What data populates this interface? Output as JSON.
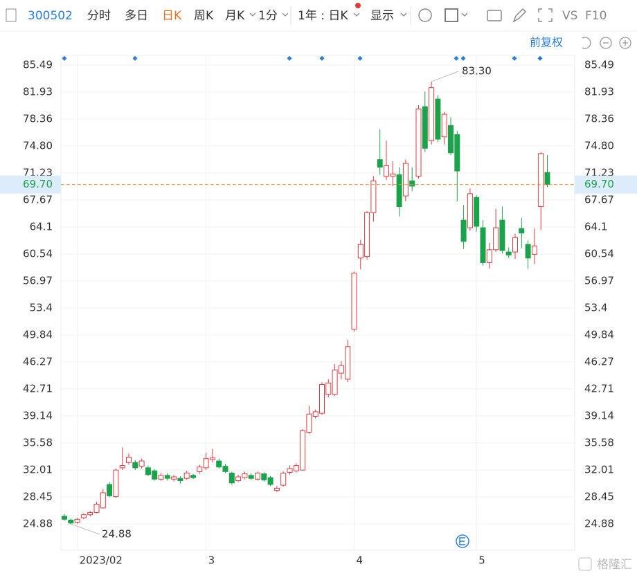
{
  "toolbar": {
    "code": "300502",
    "tabs": [
      "分时",
      "多日",
      "日K",
      "周K",
      "月K",
      "1分",
      "1年 : 日K",
      "显示"
    ],
    "vs": "VS",
    "f10": "F10",
    "adjust": "前复权",
    "watermark": "格隆汇"
  },
  "chart_data": {
    "type": "candlestick",
    "categories": [
      null,
      null,
      "2023/02",
      null,
      null,
      null,
      null,
      null,
      null,
      null,
      null,
      null,
      null,
      null,
      null,
      null,
      null,
      null,
      null,
      null,
      null,
      null,
      "3",
      null,
      null,
      null,
      null,
      null,
      null,
      null,
      null,
      null,
      null,
      null,
      null,
      null,
      null,
      null,
      null,
      null,
      null,
      null,
      null,
      null,
      null,
      "4",
      null,
      null,
      null,
      null,
      null,
      null,
      null,
      null,
      null,
      null,
      null,
      null,
      null,
      null,
      null,
      null,
      null,
      null,
      "5",
      null,
      null,
      null,
      null,
      null,
      null,
      null,
      null,
      null,
      null,
      null
    ],
    "open": [
      25.9,
      25.4,
      25.1,
      25.7,
      26.1,
      26.4,
      27.0,
      30.1,
      28.5,
      32.3,
      33.0,
      33.0,
      32.5,
      32.3,
      31.9,
      30.8,
      31.3,
      30.8,
      30.9,
      30.9,
      31.3,
      31.8,
      32.3,
      33.4,
      33.2,
      32.5,
      31.6,
      30.6,
      31.0,
      31.3,
      30.8,
      31.5,
      31.0,
      29.3,
      30.0,
      31.7,
      31.9,
      32.0,
      37.0,
      39.1,
      39.5,
      42.0,
      42.0,
      44.8,
      44.0,
      50.6,
      60.0,
      60.2,
      66.0,
      73.0,
      70.8,
      70.8,
      71.0,
      68.2,
      70.2,
      70.8,
      80.0,
      75.5,
      81.0,
      76.0,
      77.5,
      76.3,
      65.0,
      64.0,
      68.0,
      64.0,
      59.4,
      61.1,
      65.0,
      60.8,
      60.8,
      63.9,
      61.8,
      60.5,
      66.8,
      71.3
    ],
    "high": [
      26.2,
      25.6,
      25.7,
      26.3,
      26.6,
      27.8,
      29.5,
      30.4,
      32.2,
      35.0,
      34.2,
      33.3,
      33.5,
      32.6,
      32.1,
      31.6,
      31.6,
      31.4,
      31.2,
      31.9,
      31.5,
      32.7,
      34.3,
      34.8,
      33.5,
      32.8,
      31.8,
      31.4,
      31.8,
      31.6,
      31.8,
      31.7,
      31.2,
      29.9,
      31.8,
      32.6,
      32.9,
      37.4,
      40.5,
      40.0,
      43.6,
      44.0,
      46.0,
      46.4,
      49.2,
      58.2,
      62.4,
      66.2,
      70.8,
      77.0,
      75.5,
      72.8,
      72.0,
      73.0,
      72.0,
      80.2,
      82.0,
      83.3,
      81.5,
      79.3,
      78.6,
      76.8,
      67.0,
      69.2,
      68.3,
      65.0,
      62.0,
      66.5,
      66.8,
      61.4,
      63.2,
      65.3,
      62.3,
      63.9,
      74.0,
      73.6
    ],
    "low": [
      25.3,
      24.88,
      24.9,
      25.5,
      25.9,
      26.3,
      26.9,
      28.4,
      28.3,
      32.0,
      32.7,
      32.0,
      32.2,
      31.2,
      30.6,
      30.6,
      30.6,
      30.5,
      30.2,
      30.7,
      30.8,
      31.5,
      32.0,
      33.0,
      32.2,
      31.6,
      30.1,
      30.4,
      30.8,
      30.7,
      30.6,
      30.5,
      29.9,
      29.1,
      29.8,
      31.4,
      31.7,
      31.9,
      36.8,
      38.8,
      39.3,
      41.6,
      41.8,
      44.0,
      43.6,
      50.3,
      58.5,
      59.8,
      64.8,
      71.0,
      70.3,
      69.5,
      65.5,
      67.5,
      68.8,
      70.5,
      74.0,
      75.0,
      75.3,
      75.0,
      73.6,
      67.5,
      61.2,
      63.6,
      63.5,
      59.0,
      58.6,
      60.8,
      60.6,
      60.0,
      59.9,
      61.3,
      58.6,
      59.2,
      63.7,
      69.4
    ],
    "close": [
      25.5,
      25.0,
      25.5,
      26.1,
      26.4,
      27.5,
      29.0,
      28.6,
      32.0,
      32.6,
      33.7,
      32.3,
      33.2,
      31.4,
      30.8,
      31.3,
      30.9,
      31.1,
      30.6,
      31.6,
      31.0,
      32.4,
      33.5,
      33.6,
      32.4,
      31.8,
      30.3,
      31.1,
      31.5,
      30.9,
      31.6,
      30.7,
      30.1,
      29.6,
      31.6,
      32.2,
      32.6,
      37.2,
      39.4,
      39.7,
      43.3,
      43.5,
      45.2,
      45.8,
      48.3,
      58.0,
      61.8,
      66.0,
      70.2,
      72.0,
      72.2,
      71.1,
      66.8,
      72.5,
      69.5,
      79.7,
      74.5,
      82.5,
      75.7,
      79.0,
      73.9,
      71.5,
      62.2,
      68.5,
      64.2,
      59.4,
      61.1,
      64.0,
      61.0,
      60.4,
      62.7,
      63.3,
      60.0,
      61.6,
      73.8,
      69.7
    ],
    "up_color": "#e0393e",
    "down_color": "#1aa34a",
    "grid": true,
    "ylim": [
      86.77,
      21.41
    ],
    "yticks": [
      85.49,
      81.93,
      78.36,
      {
        "value": 74.8,
        "label": "74.80"
      },
      71.23,
      67.67,
      64.1,
      60.54,
      56.97,
      53.4,
      49.84,
      46.27,
      42.71,
      39.14,
      35.58,
      32.01,
      28.45,
      24.88
    ],
    "current_price": {
      "value": 69.7,
      "label": "69.70"
    },
    "max_label": {
      "value": 83.3,
      "label": "83.30"
    },
    "min_label": 24.88
  }
}
